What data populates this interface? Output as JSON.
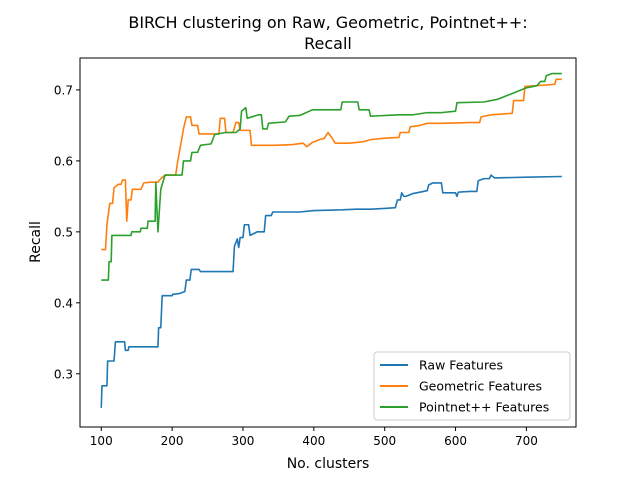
{
  "chart_data": {
    "type": "line",
    "title": [
      "BIRCH clustering on Raw, Geometric, Pointnet++:",
      "Recall"
    ],
    "xlabel": "No. clusters",
    "ylabel": "Recall",
    "xlim": [
      70,
      770
    ],
    "ylim": [
      0.225,
      0.745
    ],
    "xticks": [
      100,
      200,
      300,
      400,
      500,
      600,
      700
    ],
    "yticks": [
      0.3,
      0.4,
      0.5,
      0.6,
      0.7
    ],
    "xtick_labels": [
      "100",
      "200",
      "300",
      "400",
      "500",
      "600",
      "700"
    ],
    "ytick_labels": [
      "0.3",
      "0.4",
      "0.5",
      "0.6",
      "0.7"
    ],
    "legend_position": "lower-right",
    "grid": false,
    "series": [
      {
        "name": "Raw Features",
        "color": "#1f77b4",
        "points": [
          [
            100,
            0.252
          ],
          [
            101,
            0.283
          ],
          [
            108,
            0.283
          ],
          [
            109,
            0.318
          ],
          [
            118,
            0.318
          ],
          [
            120,
            0.345
          ],
          [
            133,
            0.345
          ],
          [
            134,
            0.333
          ],
          [
            138,
            0.333
          ],
          [
            139,
            0.338
          ],
          [
            180,
            0.338
          ],
          [
            181,
            0.365
          ],
          [
            184,
            0.365
          ],
          [
            186,
            0.41
          ],
          [
            200,
            0.41
          ],
          [
            201,
            0.412
          ],
          [
            210,
            0.413
          ],
          [
            218,
            0.416
          ],
          [
            220,
            0.432
          ],
          [
            225,
            0.432
          ],
          [
            227,
            0.447
          ],
          [
            238,
            0.447
          ],
          [
            240,
            0.444
          ],
          [
            286,
            0.444
          ],
          [
            288,
            0.48
          ],
          [
            292,
            0.49
          ],
          [
            294,
            0.478
          ],
          [
            296,
            0.492
          ],
          [
            300,
            0.492
          ],
          [
            302,
            0.51
          ],
          [
            308,
            0.51
          ],
          [
            310,
            0.495
          ],
          [
            320,
            0.5
          ],
          [
            330,
            0.5
          ],
          [
            332,
            0.523
          ],
          [
            340,
            0.523
          ],
          [
            342,
            0.528
          ],
          [
            380,
            0.528
          ],
          [
            400,
            0.53
          ],
          [
            440,
            0.531
          ],
          [
            460,
            0.532
          ],
          [
            480,
            0.532
          ],
          [
            500,
            0.533
          ],
          [
            515,
            0.534
          ],
          [
            518,
            0.545
          ],
          [
            522,
            0.545
          ],
          [
            524,
            0.555
          ],
          [
            527,
            0.55
          ],
          [
            530,
            0.55
          ],
          [
            540,
            0.554
          ],
          [
            560,
            0.558
          ],
          [
            562,
            0.566
          ],
          [
            568,
            0.569
          ],
          [
            580,
            0.569
          ],
          [
            582,
            0.555
          ],
          [
            600,
            0.555
          ],
          [
            602,
            0.55
          ],
          [
            604,
            0.556
          ],
          [
            620,
            0.557
          ],
          [
            630,
            0.557
          ],
          [
            632,
            0.572
          ],
          [
            640,
            0.575
          ],
          [
            648,
            0.575
          ],
          [
            650,
            0.58
          ],
          [
            655,
            0.576
          ],
          [
            700,
            0.577
          ],
          [
            750,
            0.578
          ]
        ]
      },
      {
        "name": "Geometric Features",
        "color": "#ff7f0e",
        "points": [
          [
            100,
            0.475
          ],
          [
            106,
            0.475
          ],
          [
            108,
            0.51
          ],
          [
            112,
            0.54
          ],
          [
            116,
            0.54
          ],
          [
            118,
            0.562
          ],
          [
            124,
            0.567
          ],
          [
            128,
            0.567
          ],
          [
            130,
            0.573
          ],
          [
            134,
            0.573
          ],
          [
            136,
            0.515
          ],
          [
            138,
            0.545
          ],
          [
            142,
            0.545
          ],
          [
            144,
            0.56
          ],
          [
            156,
            0.56
          ],
          [
            160,
            0.569
          ],
          [
            170,
            0.57
          ],
          [
            180,
            0.57
          ],
          [
            184,
            0.575
          ],
          [
            190,
            0.58
          ],
          [
            205,
            0.58
          ],
          [
            208,
            0.6
          ],
          [
            212,
            0.622
          ],
          [
            216,
            0.645
          ],
          [
            220,
            0.662
          ],
          [
            226,
            0.662
          ],
          [
            228,
            0.65
          ],
          [
            236,
            0.65
          ],
          [
            238,
            0.638
          ],
          [
            266,
            0.638
          ],
          [
            268,
            0.66
          ],
          [
            274,
            0.66
          ],
          [
            276,
            0.64
          ],
          [
            286,
            0.64
          ],
          [
            290,
            0.654
          ],
          [
            294,
            0.654
          ],
          [
            296,
            0.643
          ],
          [
            310,
            0.643
          ],
          [
            312,
            0.622
          ],
          [
            345,
            0.622
          ],
          [
            370,
            0.623
          ],
          [
            385,
            0.625
          ],
          [
            390,
            0.62
          ],
          [
            398,
            0.626
          ],
          [
            408,
            0.63
          ],
          [
            415,
            0.632
          ],
          [
            420,
            0.64
          ],
          [
            426,
            0.632
          ],
          [
            430,
            0.625
          ],
          [
            450,
            0.625
          ],
          [
            470,
            0.627
          ],
          [
            480,
            0.63
          ],
          [
            500,
            0.632
          ],
          [
            520,
            0.633
          ],
          [
            522,
            0.64
          ],
          [
            534,
            0.64
          ],
          [
            536,
            0.648
          ],
          [
            550,
            0.65
          ],
          [
            560,
            0.653
          ],
          [
            580,
            0.653
          ],
          [
            620,
            0.654
          ],
          [
            634,
            0.654
          ],
          [
            636,
            0.662
          ],
          [
            650,
            0.665
          ],
          [
            680,
            0.667
          ],
          [
            682,
            0.685
          ],
          [
            696,
            0.685
          ],
          [
            698,
            0.705
          ],
          [
            730,
            0.707
          ],
          [
            740,
            0.708
          ],
          [
            742,
            0.715
          ],
          [
            750,
            0.715
          ]
        ]
      },
      {
        "name": "Pointnet++ Features",
        "color": "#2ca02c",
        "points": [
          [
            100,
            0.432
          ],
          [
            110,
            0.432
          ],
          [
            111,
            0.458
          ],
          [
            114,
            0.458
          ],
          [
            115,
            0.495
          ],
          [
            142,
            0.495
          ],
          [
            143,
            0.5
          ],
          [
            155,
            0.5
          ],
          [
            156,
            0.505
          ],
          [
            165,
            0.505
          ],
          [
            166,
            0.515
          ],
          [
            176,
            0.515
          ],
          [
            177,
            0.57
          ],
          [
            178,
            0.545
          ],
          [
            180,
            0.5
          ],
          [
            182,
            0.53
          ],
          [
            184,
            0.56
          ],
          [
            190,
            0.58
          ],
          [
            200,
            0.58
          ],
          [
            214,
            0.58
          ],
          [
            216,
            0.6
          ],
          [
            226,
            0.6
          ],
          [
            228,
            0.612
          ],
          [
            236,
            0.612
          ],
          [
            240,
            0.622
          ],
          [
            255,
            0.624
          ],
          [
            260,
            0.637
          ],
          [
            275,
            0.64
          ],
          [
            290,
            0.64
          ],
          [
            296,
            0.645
          ],
          [
            298,
            0.67
          ],
          [
            304,
            0.675
          ],
          [
            306,
            0.66
          ],
          [
            322,
            0.665
          ],
          [
            326,
            0.665
          ],
          [
            328,
            0.645
          ],
          [
            334,
            0.645
          ],
          [
            336,
            0.653
          ],
          [
            360,
            0.655
          ],
          [
            365,
            0.663
          ],
          [
            380,
            0.664
          ],
          [
            398,
            0.672
          ],
          [
            438,
            0.672
          ],
          [
            440,
            0.683
          ],
          [
            462,
            0.683
          ],
          [
            464,
            0.672
          ],
          [
            478,
            0.672
          ],
          [
            480,
            0.663
          ],
          [
            520,
            0.665
          ],
          [
            540,
            0.665
          ],
          [
            560,
            0.668
          ],
          [
            580,
            0.668
          ],
          [
            600,
            0.67
          ],
          [
            602,
            0.682
          ],
          [
            640,
            0.683
          ],
          [
            660,
            0.687
          ],
          [
            680,
            0.695
          ],
          [
            700,
            0.703
          ],
          [
            715,
            0.706
          ],
          [
            720,
            0.712
          ],
          [
            726,
            0.712
          ],
          [
            728,
            0.72
          ],
          [
            736,
            0.723
          ],
          [
            750,
            0.723
          ]
        ]
      }
    ]
  }
}
